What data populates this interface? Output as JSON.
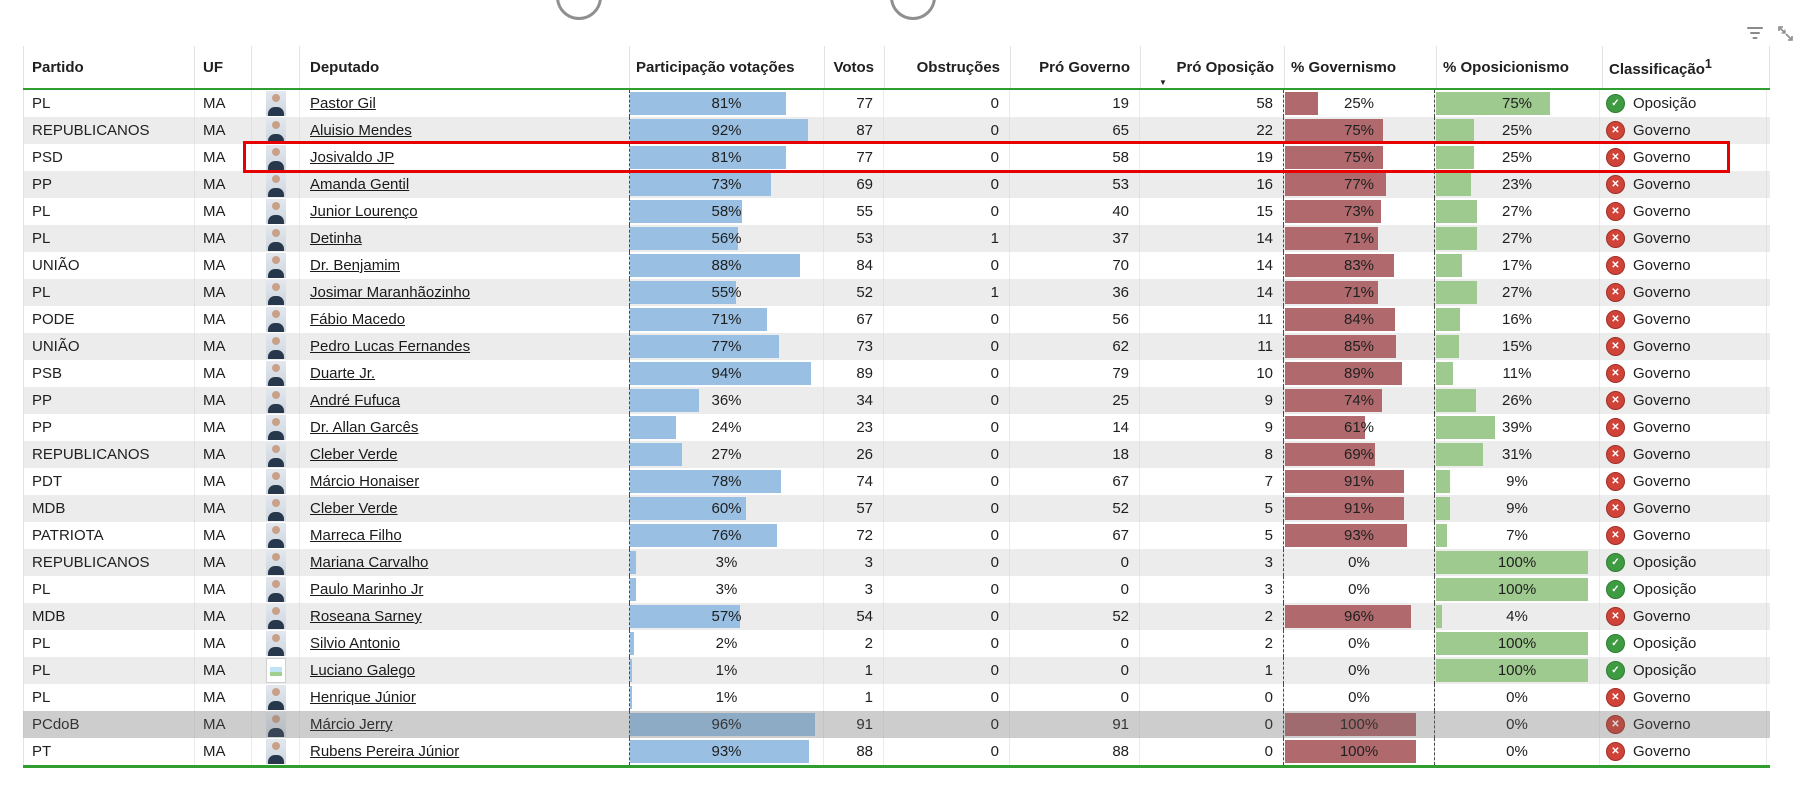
{
  "visual_header": {
    "filter_icon": "filter",
    "focus_icon": "focus-mode"
  },
  "table": {
    "columns": {
      "partido": "Partido",
      "uf": "UF",
      "deputado": "Deputado",
      "participacao": "Participação votações",
      "votos": "Votos",
      "obstrucoes": "Obstruções",
      "pro_governo": "Pró Governo",
      "pro_oposicao": "Pró Oposição",
      "governismo": "% Governismo",
      "oposicionismo": "% Oposicionismo",
      "classificacao": "Classificação",
      "classificacao_footnote": "1"
    },
    "sort": {
      "column": "Pró Oposição",
      "direction": "desc"
    },
    "rows": [
      {
        "partido": "PL",
        "uf": "MA",
        "deputado": "Pastor Gil",
        "participacao": "81%",
        "participacao_pct": 81,
        "votos": "77",
        "obstrucoes": "0",
        "pro_governo": "19",
        "pro_oposicao": "58",
        "governismo": "25%",
        "governismo_pct": 25,
        "oposicionismo": "75%",
        "oposicionismo_pct": 75,
        "classificacao": "Oposição",
        "classificacao_tipo": "oposicao",
        "photo": "portrait",
        "destaque": false,
        "selecionado": false
      },
      {
        "partido": "REPUBLICANOS",
        "uf": "MA",
        "deputado": "Aluisio Mendes",
        "participacao": "92%",
        "participacao_pct": 92,
        "votos": "87",
        "obstrucoes": "0",
        "pro_governo": "65",
        "pro_oposicao": "22",
        "governismo": "75%",
        "governismo_pct": 75,
        "oposicionismo": "25%",
        "oposicionismo_pct": 25,
        "classificacao": "Governo",
        "classificacao_tipo": "governo",
        "photo": "portrait",
        "destaque": false,
        "selecionado": false
      },
      {
        "partido": "PSD",
        "uf": "MA",
        "deputado": "Josivaldo JP",
        "participacao": "81%",
        "participacao_pct": 81,
        "votos": "77",
        "obstrucoes": "0",
        "pro_governo": "58",
        "pro_oposicao": "19",
        "governismo": "75%",
        "governismo_pct": 75,
        "oposicionismo": "25%",
        "oposicionismo_pct": 25,
        "classificacao": "Governo",
        "classificacao_tipo": "governo",
        "photo": "portrait",
        "destaque": true,
        "selecionado": false
      },
      {
        "partido": "PP",
        "uf": "MA",
        "deputado": "Amanda Gentil",
        "participacao": "73%",
        "participacao_pct": 73,
        "votos": "69",
        "obstrucoes": "0",
        "pro_governo": "53",
        "pro_oposicao": "16",
        "governismo": "77%",
        "governismo_pct": 77,
        "oposicionismo": "23%",
        "oposicionismo_pct": 23,
        "classificacao": "Governo",
        "classificacao_tipo": "governo",
        "photo": "portrait",
        "destaque": false,
        "selecionado": false
      },
      {
        "partido": "PL",
        "uf": "MA",
        "deputado": "Junior Lourenço",
        "participacao": "58%",
        "participacao_pct": 58,
        "votos": "55",
        "obstrucoes": "0",
        "pro_governo": "40",
        "pro_oposicao": "15",
        "governismo": "73%",
        "governismo_pct": 73,
        "oposicionismo": "27%",
        "oposicionismo_pct": 27,
        "classificacao": "Governo",
        "classificacao_tipo": "governo",
        "photo": "portrait",
        "destaque": false,
        "selecionado": false
      },
      {
        "partido": "PL",
        "uf": "MA",
        "deputado": "Detinha",
        "participacao": "56%",
        "participacao_pct": 56,
        "votos": "53",
        "obstrucoes": "1",
        "pro_governo": "37",
        "pro_oposicao": "14",
        "governismo": "71%",
        "governismo_pct": 71,
        "oposicionismo": "27%",
        "oposicionismo_pct": 27,
        "classificacao": "Governo",
        "classificacao_tipo": "governo",
        "photo": "portrait",
        "destaque": false,
        "selecionado": false
      },
      {
        "partido": "UNIÃO",
        "uf": "MA",
        "deputado": "Dr. Benjamim",
        "participacao": "88%",
        "participacao_pct": 88,
        "votos": "84",
        "obstrucoes": "0",
        "pro_governo": "70",
        "pro_oposicao": "14",
        "governismo": "83%",
        "governismo_pct": 83,
        "oposicionismo": "17%",
        "oposicionismo_pct": 17,
        "classificacao": "Governo",
        "classificacao_tipo": "governo",
        "photo": "portrait",
        "destaque": false,
        "selecionado": false
      },
      {
        "partido": "PL",
        "uf": "MA",
        "deputado": "Josimar Maranhãozinho",
        "participacao": "55%",
        "participacao_pct": 55,
        "votos": "52",
        "obstrucoes": "1",
        "pro_governo": "36",
        "pro_oposicao": "14",
        "governismo": "71%",
        "governismo_pct": 71,
        "oposicionismo": "27%",
        "oposicionismo_pct": 27,
        "classificacao": "Governo",
        "classificacao_tipo": "governo",
        "photo": "portrait",
        "destaque": false,
        "selecionado": false
      },
      {
        "partido": "PODE",
        "uf": "MA",
        "deputado": "Fábio Macedo",
        "participacao": "71%",
        "participacao_pct": 71,
        "votos": "67",
        "obstrucoes": "0",
        "pro_governo": "56",
        "pro_oposicao": "11",
        "governismo": "84%",
        "governismo_pct": 84,
        "oposicionismo": "16%",
        "oposicionismo_pct": 16,
        "classificacao": "Governo",
        "classificacao_tipo": "governo",
        "photo": "portrait",
        "destaque": false,
        "selecionado": false
      },
      {
        "partido": "UNIÃO",
        "uf": "MA",
        "deputado": "Pedro Lucas Fernandes",
        "participacao": "77%",
        "participacao_pct": 77,
        "votos": "73",
        "obstrucoes": "0",
        "pro_governo": "62",
        "pro_oposicao": "11",
        "governismo": "85%",
        "governismo_pct": 85,
        "oposicionismo": "15%",
        "oposicionismo_pct": 15,
        "classificacao": "Governo",
        "classificacao_tipo": "governo",
        "photo": "portrait",
        "destaque": false,
        "selecionado": false
      },
      {
        "partido": "PSB",
        "uf": "MA",
        "deputado": "Duarte Jr.",
        "participacao": "94%",
        "participacao_pct": 94,
        "votos": "89",
        "obstrucoes": "0",
        "pro_governo": "79",
        "pro_oposicao": "10",
        "governismo": "89%",
        "governismo_pct": 89,
        "oposicionismo": "11%",
        "oposicionismo_pct": 11,
        "classificacao": "Governo",
        "classificacao_tipo": "governo",
        "photo": "portrait",
        "destaque": false,
        "selecionado": false
      },
      {
        "partido": "PP",
        "uf": "MA",
        "deputado": "André Fufuca",
        "participacao": "36%",
        "participacao_pct": 36,
        "votos": "34",
        "obstrucoes": "0",
        "pro_governo": "25",
        "pro_oposicao": "9",
        "governismo": "74%",
        "governismo_pct": 74,
        "oposicionismo": "26%",
        "oposicionismo_pct": 26,
        "classificacao": "Governo",
        "classificacao_tipo": "governo",
        "photo": "portrait",
        "destaque": false,
        "selecionado": false
      },
      {
        "partido": "PP",
        "uf": "MA",
        "deputado": "Dr. Allan Garcês",
        "participacao": "24%",
        "participacao_pct": 24,
        "votos": "23",
        "obstrucoes": "0",
        "pro_governo": "14",
        "pro_oposicao": "9",
        "governismo": "61%",
        "governismo_pct": 61,
        "oposicionismo": "39%",
        "oposicionismo_pct": 39,
        "classificacao": "Governo",
        "classificacao_tipo": "governo",
        "photo": "portrait",
        "destaque": false,
        "selecionado": false
      },
      {
        "partido": "REPUBLICANOS",
        "uf": "MA",
        "deputado": "Cleber Verde",
        "participacao": "27%",
        "participacao_pct": 27,
        "votos": "26",
        "obstrucoes": "0",
        "pro_governo": "18",
        "pro_oposicao": "8",
        "governismo": "69%",
        "governismo_pct": 69,
        "oposicionismo": "31%",
        "oposicionismo_pct": 31,
        "classificacao": "Governo",
        "classificacao_tipo": "governo",
        "photo": "portrait",
        "destaque": false,
        "selecionado": false
      },
      {
        "partido": "PDT",
        "uf": "MA",
        "deputado": "Márcio Honaiser",
        "participacao": "78%",
        "participacao_pct": 78,
        "votos": "74",
        "obstrucoes": "0",
        "pro_governo": "67",
        "pro_oposicao": "7",
        "governismo": "91%",
        "governismo_pct": 91,
        "oposicionismo": "9%",
        "oposicionismo_pct": 9,
        "classificacao": "Governo",
        "classificacao_tipo": "governo",
        "photo": "portrait",
        "destaque": false,
        "selecionado": false
      },
      {
        "partido": "MDB",
        "uf": "MA",
        "deputado": "Cleber Verde",
        "participacao": "60%",
        "participacao_pct": 60,
        "votos": "57",
        "obstrucoes": "0",
        "pro_governo": "52",
        "pro_oposicao": "5",
        "governismo": "91%",
        "governismo_pct": 91,
        "oposicionismo": "9%",
        "oposicionismo_pct": 9,
        "classificacao": "Governo",
        "classificacao_tipo": "governo",
        "photo": "portrait",
        "destaque": false,
        "selecionado": false
      },
      {
        "partido": "PATRIOTA",
        "uf": "MA",
        "deputado": "Marreca Filho",
        "participacao": "76%",
        "participacao_pct": 76,
        "votos": "72",
        "obstrucoes": "0",
        "pro_governo": "67",
        "pro_oposicao": "5",
        "governismo": "93%",
        "governismo_pct": 93,
        "oposicionismo": "7%",
        "oposicionismo_pct": 7,
        "classificacao": "Governo",
        "classificacao_tipo": "governo",
        "photo": "portrait",
        "destaque": false,
        "selecionado": false
      },
      {
        "partido": "REPUBLICANOS",
        "uf": "MA",
        "deputado": "Mariana Carvalho",
        "participacao": "3%",
        "participacao_pct": 3,
        "votos": "3",
        "obstrucoes": "0",
        "pro_governo": "0",
        "pro_oposicao": "3",
        "governismo": "0%",
        "governismo_pct": 0,
        "oposicionismo": "100%",
        "oposicionismo_pct": 100,
        "classificacao": "Oposição",
        "classificacao_tipo": "oposicao",
        "photo": "portrait",
        "destaque": false,
        "selecionado": false
      },
      {
        "partido": "PL",
        "uf": "MA",
        "deputado": "Paulo Marinho Jr",
        "participacao": "3%",
        "participacao_pct": 3,
        "votos": "3",
        "obstrucoes": "0",
        "pro_governo": "0",
        "pro_oposicao": "3",
        "governismo": "0%",
        "governismo_pct": 0,
        "oposicionismo": "100%",
        "oposicionismo_pct": 100,
        "classificacao": "Oposição",
        "classificacao_tipo": "oposicao",
        "photo": "portrait",
        "destaque": false,
        "selecionado": false
      },
      {
        "partido": "MDB",
        "uf": "MA",
        "deputado": "Roseana Sarney",
        "participacao": "57%",
        "participacao_pct": 57,
        "votos": "54",
        "obstrucoes": "0",
        "pro_governo": "52",
        "pro_oposicao": "2",
        "governismo": "96%",
        "governismo_pct": 96,
        "oposicionismo": "4%",
        "oposicionismo_pct": 4,
        "classificacao": "Governo",
        "classificacao_tipo": "governo",
        "photo": "portrait",
        "destaque": false,
        "selecionado": false
      },
      {
        "partido": "PL",
        "uf": "MA",
        "deputado": "Silvio Antonio",
        "participacao": "2%",
        "participacao_pct": 2,
        "votos": "2",
        "obstrucoes": "0",
        "pro_governo": "0",
        "pro_oposicao": "2",
        "governismo": "0%",
        "governismo_pct": 0,
        "oposicionismo": "100%",
        "oposicionismo_pct": 100,
        "classificacao": "Oposição",
        "classificacao_tipo": "oposicao",
        "photo": "portrait",
        "destaque": false,
        "selecionado": false
      },
      {
        "partido": "PL",
        "uf": "MA",
        "deputado": "Luciano Galego",
        "participacao": "1%",
        "participacao_pct": 1,
        "votos": "1",
        "obstrucoes": "0",
        "pro_governo": "0",
        "pro_oposicao": "1",
        "governismo": "0%",
        "governismo_pct": 0,
        "oposicionismo": "100%",
        "oposicionismo_pct": 100,
        "classificacao": "Oposição",
        "classificacao_tipo": "oposicao",
        "photo": "placeholder",
        "destaque": false,
        "selecionado": false
      },
      {
        "partido": "PL",
        "uf": "MA",
        "deputado": "Henrique Júnior",
        "participacao": "1%",
        "participacao_pct": 1,
        "votos": "1",
        "obstrucoes": "0",
        "pro_governo": "0",
        "pro_oposicao": "0",
        "governismo": "0%",
        "governismo_pct": 0,
        "oposicionismo": "0%",
        "oposicionismo_pct": 0,
        "classificacao": "Governo",
        "classificacao_tipo": "governo",
        "photo": "portrait",
        "destaque": false,
        "selecionado": false
      },
      {
        "partido": "PCdoB",
        "uf": "MA",
        "deputado": "Márcio Jerry",
        "participacao": "96%",
        "participacao_pct": 96,
        "votos": "91",
        "obstrucoes": "0",
        "pro_governo": "91",
        "pro_oposicao": "0",
        "governismo": "100%",
        "governismo_pct": 100,
        "oposicionismo": "0%",
        "oposicionismo_pct": 0,
        "classificacao": "Governo",
        "classificacao_tipo": "governo",
        "photo": "portrait",
        "destaque": false,
        "selecionado": true
      },
      {
        "partido": "PT",
        "uf": "MA",
        "deputado": "Rubens Pereira Júnior",
        "participacao": "93%",
        "participacao_pct": 93,
        "votos": "88",
        "obstrucoes": "0",
        "pro_governo": "88",
        "pro_oposicao": "0",
        "governismo": "100%",
        "governismo_pct": 100,
        "oposicionismo": "0%",
        "oposicionismo_pct": 0,
        "classificacao": "Governo",
        "classificacao_tipo": "governo",
        "photo": "portrait",
        "destaque": false,
        "selecionado": false
      }
    ]
  },
  "colors": {
    "table_border_green": "#2f9e2f",
    "bar_blue": "#99bfe3",
    "bar_red": "#b06a6e",
    "bar_green": "#9fca8f",
    "governo_icon_red": "#cf4338",
    "oposicao_icon_green": "#3f9b41",
    "highlight_red": "#e60000"
  }
}
